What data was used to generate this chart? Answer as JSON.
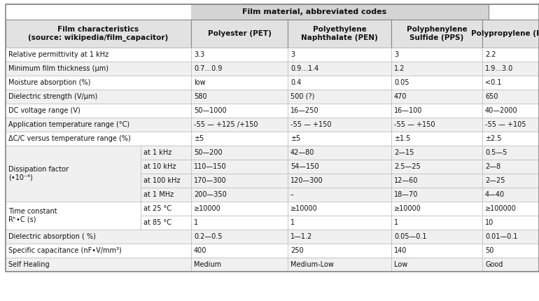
{
  "title": "Film material, abbreviated codes",
  "col_headers": [
    "Film characteristics\n(source: wikipedia/film_capacitor)",
    "Polyester (PET)",
    "Polyethylene\nNaphthalate (PEN)",
    "Polyphenylene\nSulfide (PPS)",
    "Polypropylene (PP)"
  ],
  "simple_rows": [
    {
      "label": "Relative permittivity at 1 kHz",
      "values": [
        "3.3",
        "3",
        "3",
        "2.2"
      ]
    },
    {
      "label": "Minimum film thickness (μm)",
      "values": [
        "0.7…0.9",
        "0.9…1.4",
        "1.2",
        "1.9…3.0"
      ]
    },
    {
      "label": "Moisture absorption (%)",
      "values": [
        "low",
        "0.4",
        "0.05",
        "<0.1"
      ]
    },
    {
      "label": "Dielectric strength (V/μm)",
      "values": [
        "580",
        "500 (?)",
        "470",
        "650"
      ]
    },
    {
      "label": "DC voltage range (V)",
      "values": [
        "50—1000",
        "16—250",
        "16—100",
        "40—2000"
      ]
    },
    {
      "label": "Application temperature range (°C)",
      "values": [
        "-55 — +125 /+150",
        "-55 — +150",
        "-55 — +150",
        "-55 — +105"
      ]
    },
    {
      "label": "ΔC/C versus temperature range (%)",
      "values": [
        "±5",
        "±5",
        "±1.5",
        "±2.5"
      ]
    }
  ],
  "dissipation": {
    "label": "Dissipation factor\n(•10⁻⁴)",
    "sub_rows": [
      {
        "sub": "at 1 kHz",
        "values": [
          "50—200",
          "42—80",
          "2—15",
          "0.5—5"
        ]
      },
      {
        "sub": "at 10 kHz",
        "values": [
          "110—150",
          "54—150",
          "2.5—25",
          "2—8"
        ]
      },
      {
        "sub": "at 100 kHz",
        "values": [
          "170—300",
          "120—300",
          "12—60",
          "2—25"
        ]
      },
      {
        "sub": "at 1 MHz",
        "values": [
          "200—350",
          "–",
          "18—70",
          "4—40"
        ]
      }
    ]
  },
  "time_constant": {
    "label": "Time constant\nRᵏ•C (s)",
    "sub_rows": [
      {
        "sub": "at 25 °C",
        "values": [
          "≥10000",
          "≥10000",
          "≥10000",
          "≥100000"
        ]
      },
      {
        "sub": "at 85 °C",
        "values": [
          "1",
          "1",
          "1",
          "10"
        ]
      }
    ]
  },
  "end_rows": [
    {
      "label": "Dielectric absorption ( %)",
      "values": [
        "0.2—0.5",
        "1—1.2",
        "0.05—0.1",
        "0.01—0.1"
      ]
    },
    {
      "label": "Specific capacitance (nF•V/mm³)",
      "values": [
        "400",
        "250",
        "140",
        "50"
      ]
    },
    {
      "label": "Self Healing",
      "values": [
        "Medium",
        "Medium-Low",
        "Low",
        "Good"
      ]
    }
  ],
  "bg_title": "#d4d4d4",
  "bg_header": "#e2e2e2",
  "bg_white": "#ffffff",
  "bg_stripe": "#f0f0f0",
  "border_dark": "#888888",
  "border_light": "#bbbbbb",
  "text_color": "#111111"
}
